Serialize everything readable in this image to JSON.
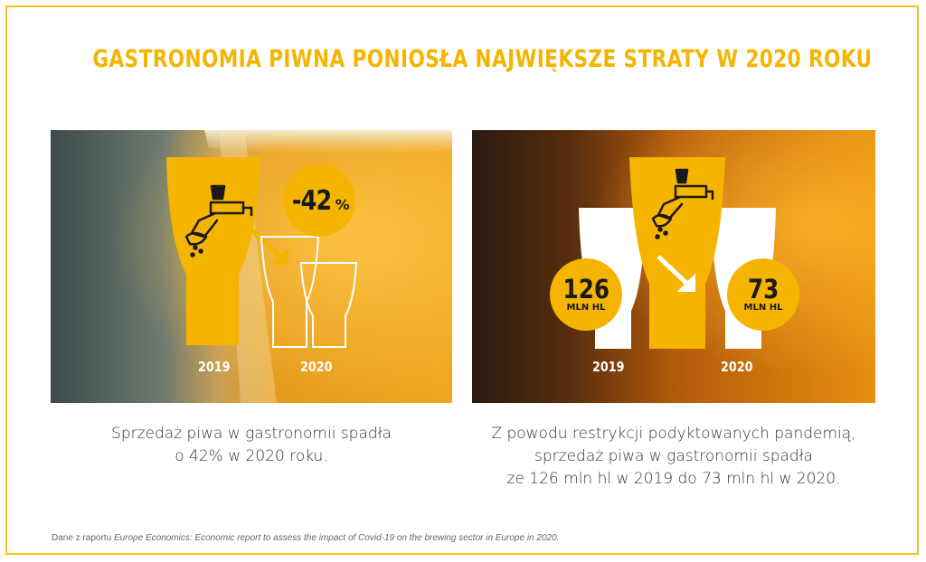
{
  "title": "GASTRONOMIA PIWNA PONIOSŁA NAJWIĘKSZE STRATY W 2020 ROKU",
  "left_panel": {
    "badge": {
      "number": "-42",
      "sign": "%"
    },
    "year_a": "2019",
    "year_b": "2020",
    "caption": [
      "Sprzedaż piwa w gastronomii spadła",
      "o 42% w 2020 roku."
    ]
  },
  "right_panel": {
    "badge_a": {
      "number": "126",
      "unit": "MLN HL"
    },
    "badge_b": {
      "number": "73",
      "unit": "MLN HL"
    },
    "year_a": "2019",
    "year_b": "2020",
    "caption": [
      "Z powodu restrykcji podyktowanych pandemią,",
      "sprzedaż piwa w gastronomii spadła",
      "ze 126 mln hl w 2019 do 73 mln hl w 2020."
    ]
  },
  "source": {
    "prefix": "Dane z raportu ",
    "italic": "Europe Economics: Economic report to assess the impact of Covid-19 on the brewing sector in Europe in 2020."
  },
  "colors": {
    "accent": "#f5b400",
    "frame": "#f3c316",
    "text": "#333333"
  },
  "icons": [
    "beer-tap-icon",
    "beer-glass-icon",
    "arrow-down-right-icon"
  ]
}
